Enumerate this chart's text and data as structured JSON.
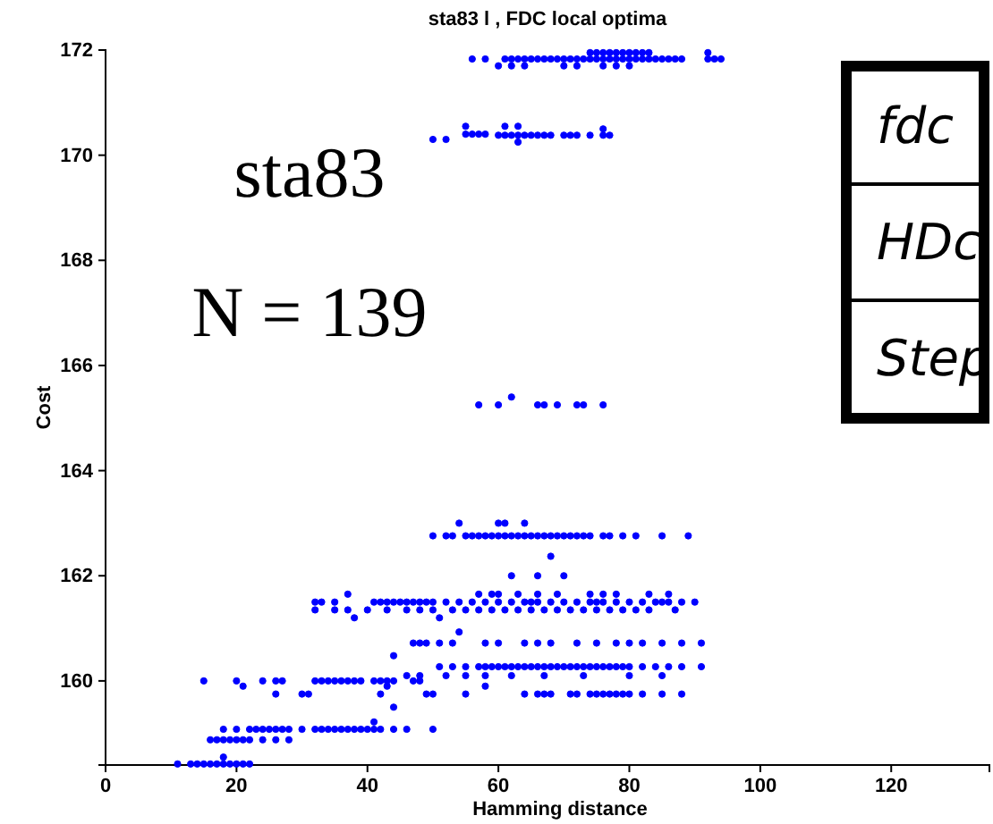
{
  "chart_data": {
    "type": "scatter",
    "title": "sta83 l , FDC local optima",
    "xlabel": "Hamming distance",
    "ylabel": "Cost",
    "xlim": [
      0,
      135
    ],
    "xticks": [
      0,
      20,
      40,
      60,
      80,
      100,
      120
    ],
    "ylim": [
      158.4,
      172
    ],
    "yticks": [
      160,
      162,
      164,
      166,
      168,
      170,
      172
    ],
    "grid": false,
    "marker": "circle",
    "annotations": [
      "sta83",
      "N = 139",
      "fdc",
      "HDc",
      "Step"
    ],
    "series": [
      {
        "color": "#0000ff",
        "x": [
          56,
          58,
          61,
          62,
          63,
          64,
          65,
          66,
          67,
          68,
          69,
          70,
          71,
          72,
          73,
          74,
          75,
          76,
          77,
          78,
          79,
          80,
          81,
          82,
          83,
          84,
          85,
          86,
          87,
          88,
          92,
          93,
          94,
          74,
          75,
          76,
          77,
          78,
          79,
          80,
          81,
          82,
          83,
          92,
          60,
          62,
          64,
          70,
          72,
          76,
          78,
          80,
          50,
          52,
          55,
          56,
          57,
          58,
          55,
          60,
          61,
          62,
          63,
          64,
          65,
          66,
          67,
          68,
          70,
          71,
          72,
          74,
          76,
          77,
          61,
          63,
          63,
          76,
          57,
          60,
          66,
          67,
          69,
          72,
          73,
          76,
          62,
          54,
          60,
          61,
          64,
          50,
          52,
          53,
          55,
          56,
          57,
          58,
          59,
          60,
          61,
          62,
          63,
          64,
          65,
          66,
          67,
          68,
          69,
          70,
          71,
          72,
          73,
          74,
          76,
          77,
          79,
          81,
          85,
          89,
          68,
          66,
          62,
          70,
          37,
          57,
          59,
          60,
          63,
          66,
          69,
          74,
          76,
          78,
          83,
          86,
          32,
          33,
          35,
          41,
          42,
          43,
          44,
          45,
          46,
          47,
          48,
          49,
          50,
          52,
          54,
          56,
          58,
          60,
          62,
          64,
          65,
          66,
          68,
          70,
          72,
          74,
          75,
          76,
          78,
          80,
          82,
          84,
          85,
          86,
          88,
          90,
          32,
          35,
          37,
          40,
          43,
          46,
          48,
          50,
          53,
          55,
          57,
          59,
          61,
          63,
          65,
          67,
          69,
          71,
          73,
          75,
          77,
          79,
          81,
          83,
          87,
          38,
          51,
          54,
          47,
          48,
          49,
          51,
          53,
          58,
          60,
          64,
          66,
          68,
          72,
          75,
          78,
          80,
          82,
          85,
          88,
          91,
          44,
          51,
          53,
          55,
          57,
          58,
          59,
          60,
          61,
          62,
          63,
          64,
          65,
          66,
          67,
          68,
          69,
          70,
          71,
          72,
          73,
          74,
          75,
          76,
          77,
          78,
          79,
          80,
          82,
          84,
          86,
          88,
          91,
          46,
          48,
          52,
          55,
          58,
          62,
          67,
          73,
          80,
          85,
          15,
          20,
          24,
          26,
          27,
          32,
          33,
          34,
          35,
          36,
          37,
          38,
          39,
          41,
          42,
          43,
          44,
          47,
          48,
          21,
          43,
          58,
          26,
          30,
          31,
          42,
          49,
          50,
          55,
          64,
          66,
          67,
          68,
          71,
          72,
          74,
          75,
          76,
          77,
          78,
          79,
          80,
          82,
          85,
          88,
          44,
          41,
          18,
          20,
          22,
          23,
          24,
          25,
          26,
          27,
          28,
          30,
          32,
          33,
          34,
          35,
          36,
          37,
          38,
          39,
          40,
          41,
          42,
          44,
          46,
          50,
          16,
          17,
          18,
          19,
          20,
          21,
          22,
          24,
          26,
          28,
          18,
          11,
          13,
          14,
          15,
          16,
          17,
          18,
          19,
          20,
          21,
          22
        ],
        "values": [
          171.83,
          171.83,
          171.83,
          171.83,
          171.83,
          171.83,
          171.83,
          171.83,
          171.83,
          171.83,
          171.83,
          171.83,
          171.83,
          171.83,
          171.83,
          171.83,
          171.83,
          171.83,
          171.83,
          171.83,
          171.83,
          171.83,
          171.83,
          171.83,
          171.83,
          171.83,
          171.83,
          171.83,
          171.83,
          171.83,
          171.83,
          171.83,
          171.83,
          171.95,
          171.95,
          171.95,
          171.95,
          171.95,
          171.95,
          171.95,
          171.95,
          171.95,
          171.95,
          171.95,
          171.7,
          171.7,
          171.7,
          171.7,
          171.7,
          171.7,
          171.7,
          171.7,
          170.3,
          170.3,
          170.4,
          170.4,
          170.4,
          170.4,
          170.55,
          170.38,
          170.38,
          170.38,
          170.38,
          170.38,
          170.38,
          170.38,
          170.38,
          170.38,
          170.38,
          170.38,
          170.38,
          170.38,
          170.38,
          170.38,
          170.55,
          170.55,
          170.25,
          170.5,
          165.25,
          165.25,
          165.25,
          165.25,
          165.25,
          165.25,
          165.25,
          165.25,
          165.4,
          163,
          163,
          163,
          163,
          162.76,
          162.76,
          162.76,
          162.76,
          162.76,
          162.76,
          162.76,
          162.76,
          162.76,
          162.76,
          162.76,
          162.76,
          162.76,
          162.76,
          162.76,
          162.76,
          162.76,
          162.76,
          162.76,
          162.76,
          162.76,
          162.76,
          162.76,
          162.76,
          162.76,
          162.76,
          162.76,
          162.76,
          162.76,
          162.37,
          162,
          162,
          162,
          161.65,
          161.65,
          161.65,
          161.65,
          161.65,
          161.65,
          161.65,
          161.65,
          161.65,
          161.65,
          161.65,
          161.65,
          161.5,
          161.5,
          161.5,
          161.5,
          161.5,
          161.5,
          161.5,
          161.5,
          161.5,
          161.5,
          161.5,
          161.5,
          161.5,
          161.5,
          161.5,
          161.5,
          161.5,
          161.5,
          161.5,
          161.5,
          161.5,
          161.5,
          161.5,
          161.5,
          161.5,
          161.5,
          161.5,
          161.5,
          161.5,
          161.5,
          161.5,
          161.5,
          161.5,
          161.5,
          161.5,
          161.5,
          161.35,
          161.35,
          161.35,
          161.35,
          161.35,
          161.35,
          161.35,
          161.35,
          161.35,
          161.35,
          161.35,
          161.35,
          161.35,
          161.35,
          161.35,
          161.35,
          161.35,
          161.35,
          161.35,
          161.35,
          161.35,
          161.35,
          161.35,
          161.35,
          161.35,
          161.2,
          161.2,
          160.93,
          160.72,
          160.72,
          160.72,
          160.72,
          160.72,
          160.72,
          160.72,
          160.72,
          160.72,
          160.72,
          160.72,
          160.72,
          160.72,
          160.72,
          160.72,
          160.72,
          160.72,
          160.72,
          160.48,
          160.27,
          160.27,
          160.27,
          160.27,
          160.27,
          160.27,
          160.27,
          160.27,
          160.27,
          160.27,
          160.27,
          160.27,
          160.27,
          160.27,
          160.27,
          160.27,
          160.27,
          160.27,
          160.27,
          160.27,
          160.27,
          160.27,
          160.27,
          160.27,
          160.27,
          160.27,
          160.27,
          160.27,
          160.27,
          160.27,
          160.27,
          160.27,
          160.1,
          160.1,
          160.1,
          160.1,
          160.1,
          160.1,
          160.1,
          160.1,
          160.1,
          160.1,
          160,
          160,
          160,
          160,
          160,
          160,
          160,
          160,
          160,
          160,
          160,
          160,
          160,
          160,
          160,
          160,
          160,
          160,
          160,
          159.9,
          159.9,
          159.9,
          159.75,
          159.75,
          159.75,
          159.75,
          159.75,
          159.75,
          159.75,
          159.75,
          159.75,
          159.75,
          159.75,
          159.75,
          159.75,
          159.75,
          159.75,
          159.75,
          159.75,
          159.75,
          159.75,
          159.75,
          159.75,
          159.75,
          159.75,
          159.5,
          159.22,
          159.08,
          159.08,
          159.08,
          159.08,
          159.08,
          159.08,
          159.08,
          159.08,
          159.08,
          159.08,
          159.08,
          159.08,
          159.08,
          159.08,
          159.08,
          159.08,
          159.08,
          159.08,
          159.08,
          159.08,
          159.08,
          159.08,
          159.08,
          159.08,
          158.88,
          158.88,
          158.88,
          158.88,
          158.88,
          158.88,
          158.88,
          158.88,
          158.88,
          158.88,
          158.55,
          158.42,
          158.42,
          158.42,
          158.42,
          158.42,
          158.42,
          158.42,
          158.42,
          158.42,
          158.42,
          158.42
        ]
      }
    ]
  }
}
